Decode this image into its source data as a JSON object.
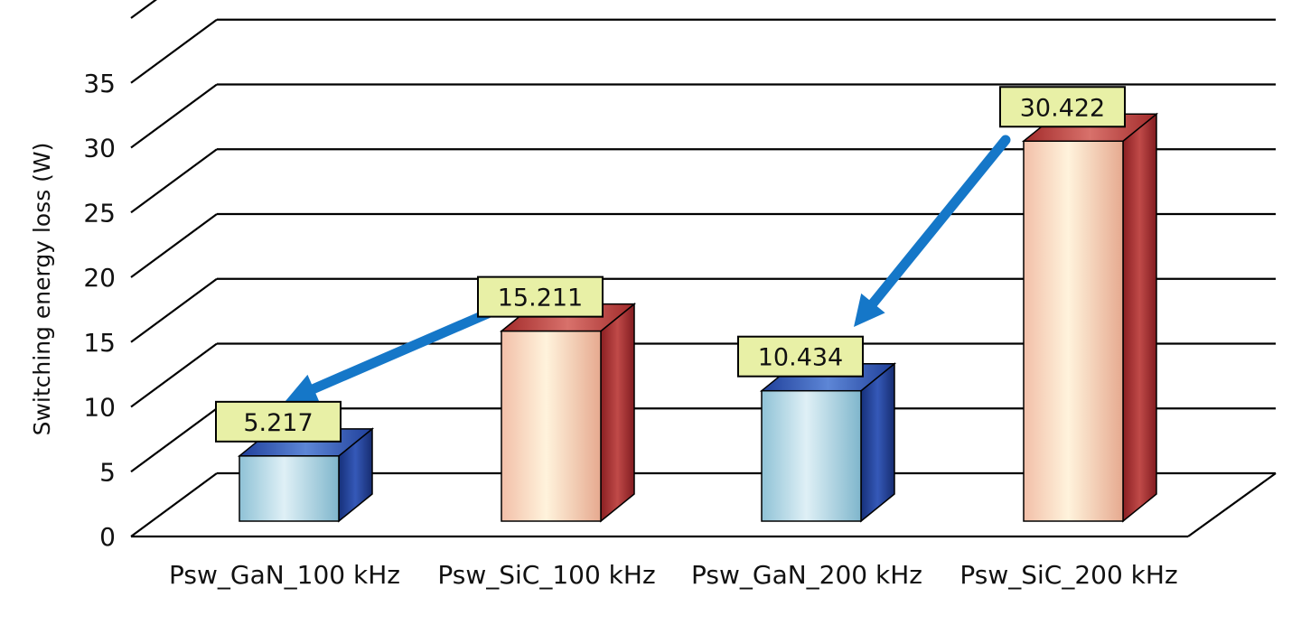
{
  "chart_data": {
    "type": "bar",
    "title": "",
    "xlabel": "",
    "ylabel": "Switching energy loss (W)",
    "ylim": [
      0,
      35
    ],
    "yticks": [
      0,
      5,
      10,
      15,
      20,
      25,
      30,
      35
    ],
    "grid": true,
    "legend": "none",
    "categories": [
      "Psw_GaN_100 kHz",
      "Psw_SiC_100 kHz",
      "Psw_GaN_200 kHz",
      "Psw_SiC_200 kHz"
    ],
    "values": [
      5.217,
      15.211,
      10.434,
      30.422
    ],
    "data_labels": [
      "5.217",
      "15.211",
      "10.434",
      "30.422"
    ],
    "bar_colors": [
      "#a9d3e2",
      "#f6cdb7",
      "#a9d3e2",
      "#f6cdb7"
    ],
    "side_colors": [
      "#1f3d91",
      "#a82c2c",
      "#1f3d91",
      "#a82c2c"
    ],
    "label_box_color": "#e8f0a6",
    "arrow_color": "#1577c8",
    "annotations": [
      {
        "type": "arrow",
        "from_category": 1,
        "to_category": 0
      },
      {
        "type": "arrow",
        "from_category": 3,
        "to_category": 2
      }
    ]
  }
}
